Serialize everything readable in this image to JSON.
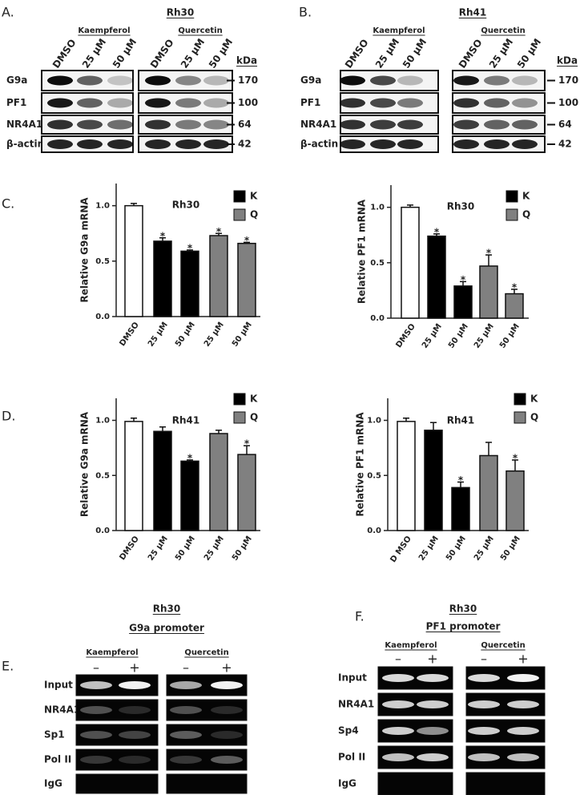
{
  "panels": [
    {
      "label": "A.",
      "title": "Rh30",
      "groups": [
        {
          "name": "Kaempferol",
          "lanes": [
            "DMSO",
            "25 µM",
            "50 µM"
          ]
        },
        {
          "name": "Quercetin",
          "lanes": [
            "DMSO",
            "25 µM",
            "50 µM"
          ]
        }
      ],
      "rows": [
        "G9a",
        "PF1",
        "NR4A1",
        "β-actin"
      ],
      "size_unit": "kDa",
      "sizes": [
        170,
        100,
        64,
        42
      ]
    },
    {
      "label": "B.",
      "title": "Rh41",
      "groups": [
        {
          "name": "Kaempferol",
          "lanes": [
            "DMSO",
            "25 µM",
            "50 µM"
          ]
        },
        {
          "name": "Quercetin",
          "lanes": [
            "DMSO",
            "25 µM",
            "50 µM"
          ]
        }
      ],
      "rows": [
        "G9a",
        "PF1",
        "NR4A1",
        "β-actin"
      ],
      "size_unit": "kDa",
      "sizes": [
        170,
        100,
        64,
        42
      ]
    },
    {
      "label": "E.",
      "title": "Rh30",
      "subtitle": "G9a promoter",
      "groups": [
        {
          "name": "Kaempferol",
          "lanes": [
            "–",
            "+"
          ]
        },
        {
          "name": "Quercetin",
          "lanes": [
            "–",
            "+"
          ]
        }
      ],
      "rows": [
        "Input",
        "NR4A1",
        "Sp1",
        "Pol II",
        "IgG"
      ]
    },
    {
      "label": "F.",
      "title": "Rh30",
      "subtitle": "PF1 promoter",
      "groups": [
        {
          "name": "Kaempferol",
          "lanes": [
            "–",
            "+"
          ]
        },
        {
          "name": "Quercetin",
          "lanes": [
            "–",
            "+"
          ]
        }
      ],
      "rows": [
        "Input",
        "NR4A1",
        "Sp4",
        "Pol II",
        "IgG"
      ]
    }
  ],
  "chart_data": [
    {
      "type": "bar",
      "panel": "C.",
      "title": "Rh30",
      "ylabel": "Relative G9a mRNA",
      "categories": [
        "DMSO",
        "25 µM",
        "50 µM",
        "25 µM",
        "50 µM"
      ],
      "values": [
        1.0,
        0.68,
        0.59,
        0.73,
        0.66
      ],
      "errors": [
        0.02,
        0.03,
        0.01,
        0.02,
        0.01
      ],
      "significance": [
        null,
        "*",
        "*",
        "*",
        "*"
      ],
      "colors": [
        "#ffffff",
        "#000000",
        "#000000",
        "#808080",
        "#808080"
      ],
      "legend": [
        {
          "name": "K",
          "color": "#000000"
        },
        {
          "name": "Q",
          "color": "#808080"
        }
      ],
      "ylim": [
        0,
        1.2
      ],
      "yticks": [
        {
          "value": 0,
          "label": "0.0"
        },
        {
          "value": 0.5,
          "label": "0.5"
        },
        {
          "value": 1,
          "label": "1.0"
        }
      ]
    },
    {
      "type": "bar",
      "title": "Rh30",
      "ylabel": "Relative PF1 mRNA",
      "categories": [
        "DMSO",
        "25 µM",
        "50 µM",
        "25 µM",
        "50 µM"
      ],
      "values": [
        1.0,
        0.74,
        0.29,
        0.47,
        0.22
      ],
      "errors": [
        0.02,
        0.02,
        0.04,
        0.1,
        0.04
      ],
      "significance": [
        null,
        "*",
        "*",
        "*",
        "*"
      ],
      "colors": [
        "#ffffff",
        "#000000",
        "#000000",
        "#808080",
        "#808080"
      ],
      "legend": [
        {
          "name": "K",
          "color": "#000000"
        },
        {
          "name": "Q",
          "color": "#808080"
        }
      ],
      "ylim": [
        0,
        1.2
      ],
      "yticks": [
        {
          "value": 0,
          "label": "0.0"
        },
        {
          "value": 0.5,
          "label": "0.5"
        },
        {
          "value": 1,
          "label": "1.0"
        }
      ]
    },
    {
      "type": "bar",
      "panel": "D.",
      "title": "Rh41",
      "ylabel": "Relative G9a mRNA",
      "categories": [
        "DMSO",
        "25 µM",
        "50 µM",
        "25 µM",
        "50 µM"
      ],
      "values": [
        0.99,
        0.9,
        0.63,
        0.88,
        0.69
      ],
      "errors": [
        0.03,
        0.04,
        0.01,
        0.03,
        0.08
      ],
      "significance": [
        null,
        null,
        "*",
        null,
        "*"
      ],
      "colors": [
        "#ffffff",
        "#000000",
        "#000000",
        "#808080",
        "#808080"
      ],
      "legend": [
        {
          "name": "K",
          "color": "#000000"
        },
        {
          "name": "Q",
          "color": "#808080"
        }
      ],
      "ylim": [
        0,
        1.2
      ],
      "yticks": [
        {
          "value": 0,
          "label": "0.0"
        },
        {
          "value": 0.5,
          "label": "0.5"
        },
        {
          "value": 1,
          "label": "1.0"
        }
      ]
    },
    {
      "type": "bar",
      "title": "Rh41",
      "ylabel": "Relative PF1 mRNA",
      "categories": [
        "D MSO",
        "25 µM",
        "50 µM",
        "25 µM",
        "50 µM"
      ],
      "values": [
        0.99,
        0.91,
        0.39,
        0.68,
        0.54
      ],
      "errors": [
        0.03,
        0.07,
        0.05,
        0.12,
        0.1
      ],
      "significance": [
        null,
        null,
        "*",
        null,
        "*"
      ],
      "colors": [
        "#ffffff",
        "#000000",
        "#000000",
        "#808080",
        "#808080"
      ],
      "legend": [
        {
          "name": "K",
          "color": "#000000"
        },
        {
          "name": "Q",
          "color": "#808080"
        }
      ],
      "ylim": [
        0,
        1.2
      ],
      "yticks": [
        {
          "value": 0,
          "label": "0.0"
        },
        {
          "value": 0.5,
          "label": "0.5"
        },
        {
          "value": 1,
          "label": "1.0"
        }
      ]
    }
  ]
}
